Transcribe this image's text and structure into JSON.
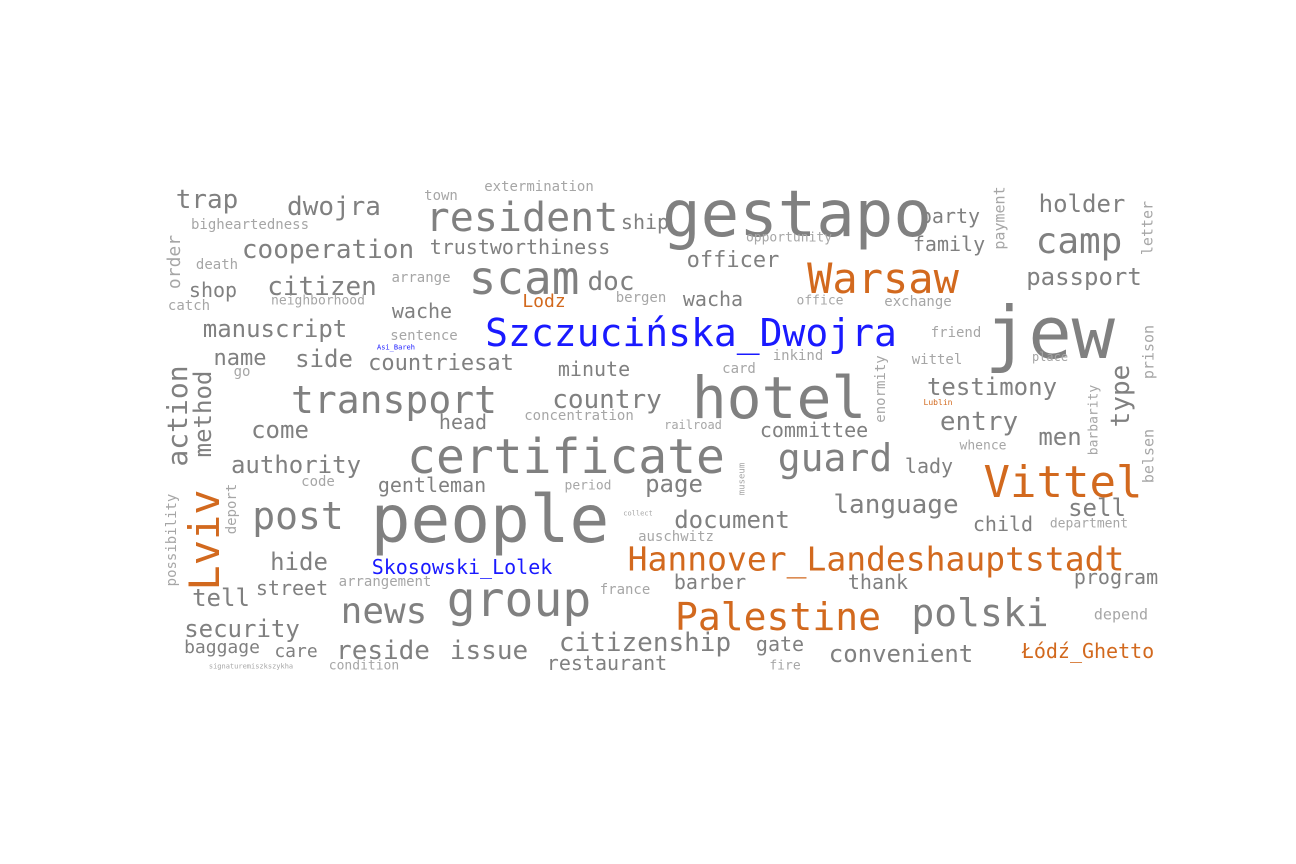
{
  "colors": {
    "gray": "#808080",
    "orange": "#d2691e",
    "blue": "#1a1aff"
  },
  "words": {
    "gestapo": "gestapo",
    "jew": "jew",
    "people": "people",
    "hotel": "hotel",
    "certificate": "certificate",
    "group": "group",
    "resident": "resident",
    "scam": "scam",
    "warsaw": "Warsaw",
    "vittel": "Vittel",
    "palestine": "Palestine",
    "hannover": "Hannover_Landeshauptstadt",
    "szczucinska": "Szczucińska_Dwojra",
    "skosowski": "Skosowski_Lolek",
    "lviv": "Lviv",
    "lodz_ghetto": "Łódź_Ghetto",
    "lodz": "Lodz",
    "camp": "camp",
    "transport": "transport",
    "guard": "guard",
    "post": "post",
    "news": "news",
    "polski": "polski",
    "passport": "passport",
    "holder": "holder",
    "trap": "trap",
    "dwojra": "dwojra",
    "cooperation": "cooperation",
    "trustworthiness": "trustworthiness",
    "citizen": "citizen",
    "manuscript": "manuscript",
    "name": "name",
    "side": "side",
    "countriesat": "countriesat",
    "country": "country",
    "minute": "minute",
    "officer": "officer",
    "doc": "doc",
    "ship": "ship",
    "party": "party",
    "family": "family",
    "town": "town",
    "extermination": "extermination",
    "bigheartedness": "bigheartedness",
    "order": "order",
    "death": "death",
    "shop": "shop",
    "catch": "catch",
    "arrange": "arrange",
    "neighborhood": "neighborhood",
    "wache": "wache",
    "wacha": "wacha",
    "bergen": "bergen",
    "office": "office",
    "exchange": "exchange",
    "opportunity": "opportunity",
    "payment": "payment",
    "letter": "letter",
    "sentence": "sentence",
    "friend": "friend",
    "inkind": "inkind",
    "wittel": "wittel",
    "place": "place",
    "prison": "prison",
    "testimony": "testimony",
    "type": "type",
    "entry": "entry",
    "men": "men",
    "enormity": "enormity",
    "barbarity": "barbarity",
    "lublin": "Lublin",
    "whence": "whence",
    "belsen": "belsen",
    "action": "action",
    "method": "method",
    "come": "come",
    "head": "head",
    "concentration": "concentration",
    "railroad": "railroad",
    "card": "card",
    "committee": "committee",
    "authority": "authority",
    "go": "go",
    "code": "code",
    "gentleman": "gentleman",
    "period": "period",
    "page": "page",
    "museum": "museum",
    "lady": "lady",
    "language": "language",
    "child": "child",
    "sell": "sell",
    "department": "department",
    "possibility": "possibility",
    "deport": "deport",
    "document": "document",
    "auschwitz": "auschwitz",
    "hide": "hide",
    "street": "street",
    "arrangement": "arrangement",
    "tell": "tell",
    "france": "france",
    "barber": "barber",
    "thank": "thank",
    "program": "program",
    "security": "security",
    "depend": "depend",
    "baggage": "baggage",
    "care": "care",
    "reside": "reside",
    "issue": "issue",
    "citizenship": "citizenship",
    "gate": "gate",
    "convenient": "convenient",
    "restaurant": "restaurant",
    "fire": "fire",
    "condition": "condition",
    "signature": "signaturemiszkszykha",
    "asi_bareh": "Asi_Bareh",
    "collect": "collect"
  }
}
